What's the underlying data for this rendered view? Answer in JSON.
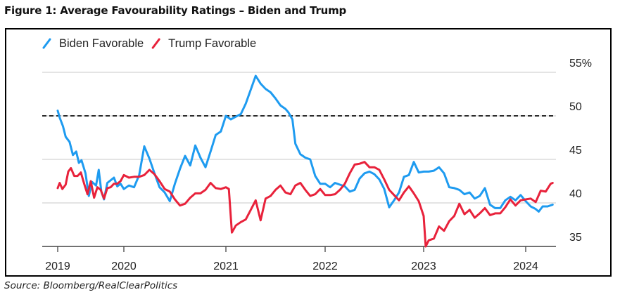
{
  "figure_title": "Figure 1: Average Favourability Ratings – Biden and Trump",
  "source": "Source: Bloomberg/RealClearPolitics",
  "chart_data": {
    "type": "line",
    "title": "Figure 1: Average Favourability Ratings – Biden and Trump",
    "xlabel": "",
    "ylabel": "",
    "x_ticks": [
      "2019",
      "2020",
      "2021",
      "2022",
      "2023",
      "2024"
    ],
    "y_ticks": [
      "35",
      "40",
      "45",
      "50",
      "55%"
    ],
    "ylim": [
      35,
      55
    ],
    "xlim": [
      2019,
      2024.3
    ],
    "grid": "horizontal",
    "legend": "top-left",
    "reference_line": {
      "value": 50,
      "style": "dashed",
      "color": "#111111"
    },
    "series": [
      {
        "name": "Biden Favorable",
        "color": "#1e9bf0",
        "points": [
          [
            2019.0,
            50.6
          ],
          [
            2019.03,
            49.8
          ],
          [
            2019.08,
            48.8
          ],
          [
            2019.12,
            47.6
          ],
          [
            2019.18,
            47.0
          ],
          [
            2019.23,
            45.5
          ],
          [
            2019.28,
            45.9
          ],
          [
            2019.32,
            44.6
          ],
          [
            2019.36,
            44.9
          ],
          [
            2019.42,
            43.4
          ],
          [
            2019.47,
            40.8
          ],
          [
            2019.52,
            42.4
          ],
          [
            2019.58,
            42.0
          ],
          [
            2019.62,
            43.8
          ],
          [
            2019.66,
            41.3
          ],
          [
            2019.7,
            40.4
          ],
          [
            2019.75,
            42.3
          ],
          [
            2019.8,
            42.6
          ],
          [
            2019.85,
            42.9
          ],
          [
            2019.9,
            41.9
          ],
          [
            2019.95,
            42.2
          ],
          [
            2020.0,
            41.6
          ],
          [
            2020.05,
            42.0
          ],
          [
            2020.1,
            41.8
          ],
          [
            2020.15,
            43.2
          ],
          [
            2020.2,
            46.5
          ],
          [
            2020.25,
            45.1
          ],
          [
            2020.3,
            43.4
          ],
          [
            2020.35,
            41.8
          ],
          [
            2020.4,
            41.2
          ],
          [
            2020.45,
            40.2
          ],
          [
            2020.5,
            42.2
          ],
          [
            2020.55,
            43.9
          ],
          [
            2020.6,
            45.4
          ],
          [
            2020.65,
            44.3
          ],
          [
            2020.7,
            46.6
          ],
          [
            2020.75,
            45.2
          ],
          [
            2020.8,
            44.1
          ],
          [
            2020.85,
            45.9
          ],
          [
            2020.9,
            47.8
          ],
          [
            2020.95,
            48.2
          ],
          [
            2021.0,
            50.0
          ],
          [
            2021.05,
            49.6
          ],
          [
            2021.1,
            49.9
          ],
          [
            2021.15,
            50.2
          ],
          [
            2021.2,
            51.4
          ],
          [
            2021.25,
            53.0
          ],
          [
            2021.3,
            54.6
          ],
          [
            2021.35,
            53.7
          ],
          [
            2021.4,
            53.1
          ],
          [
            2021.45,
            52.7
          ],
          [
            2021.5,
            52.0
          ],
          [
            2021.55,
            51.2
          ],
          [
            2021.6,
            50.8
          ],
          [
            2021.63,
            50.4
          ],
          [
            2021.67,
            49.6
          ],
          [
            2021.7,
            46.8
          ],
          [
            2021.75,
            45.6
          ],
          [
            2021.8,
            45.2
          ],
          [
            2021.85,
            45.0
          ],
          [
            2021.9,
            43.1
          ],
          [
            2021.95,
            42.2
          ],
          [
            2022.0,
            42.2
          ],
          [
            2022.05,
            41.8
          ],
          [
            2022.1,
            42.3
          ],
          [
            2022.15,
            42.1
          ],
          [
            2022.2,
            41.9
          ],
          [
            2022.25,
            41.3
          ],
          [
            2022.3,
            41.5
          ],
          [
            2022.35,
            42.8
          ],
          [
            2022.4,
            43.4
          ],
          [
            2022.45,
            43.6
          ],
          [
            2022.5,
            43.3
          ],
          [
            2022.55,
            42.7
          ],
          [
            2022.6,
            41.6
          ],
          [
            2022.65,
            39.5
          ],
          [
            2022.7,
            40.3
          ],
          [
            2022.75,
            41.2
          ],
          [
            2022.8,
            43.0
          ],
          [
            2022.85,
            43.2
          ],
          [
            2022.9,
            44.7
          ],
          [
            2022.95,
            43.5
          ],
          [
            2023.0,
            43.6
          ],
          [
            2023.05,
            43.6
          ],
          [
            2023.1,
            43.7
          ],
          [
            2023.15,
            44.1
          ],
          [
            2023.2,
            43.4
          ],
          [
            2023.25,
            41.8
          ],
          [
            2023.3,
            41.7
          ],
          [
            2023.35,
            41.5
          ],
          [
            2023.4,
            41.0
          ],
          [
            2023.45,
            41.2
          ],
          [
            2023.5,
            40.5
          ],
          [
            2023.55,
            40.8
          ],
          [
            2023.6,
            41.7
          ],
          [
            2023.65,
            39.8
          ],
          [
            2023.7,
            39.4
          ],
          [
            2023.75,
            39.4
          ],
          [
            2023.8,
            40.3
          ],
          [
            2023.85,
            40.7
          ],
          [
            2023.9,
            40.3
          ],
          [
            2023.95,
            40.9
          ],
          [
            2024.0,
            40.2
          ],
          [
            2024.05,
            39.6
          ],
          [
            2024.1,
            39.3
          ],
          [
            2024.13,
            39.0
          ],
          [
            2024.17,
            39.6
          ],
          [
            2024.22,
            39.6
          ],
          [
            2024.27,
            39.8
          ]
        ]
      },
      {
        "name": "Trump Favorable",
        "color": "#e8223b",
        "points": [
          [
            2019.0,
            41.7
          ],
          [
            2019.03,
            42.3
          ],
          [
            2019.07,
            41.6
          ],
          [
            2019.12,
            42.1
          ],
          [
            2019.16,
            43.6
          ],
          [
            2019.2,
            44.0
          ],
          [
            2019.25,
            43.1
          ],
          [
            2019.3,
            43.1
          ],
          [
            2019.35,
            43.5
          ],
          [
            2019.4,
            42.2
          ],
          [
            2019.45,
            41.0
          ],
          [
            2019.5,
            42.5
          ],
          [
            2019.55,
            40.6
          ],
          [
            2019.6,
            41.8
          ],
          [
            2019.65,
            41.5
          ],
          [
            2019.7,
            40.5
          ],
          [
            2019.75,
            41.7
          ],
          [
            2019.8,
            41.8
          ],
          [
            2019.85,
            42.2
          ],
          [
            2019.9,
            42.2
          ],
          [
            2019.95,
            42.5
          ],
          [
            2020.0,
            43.2
          ],
          [
            2020.05,
            42.9
          ],
          [
            2020.1,
            43.0
          ],
          [
            2020.15,
            43.0
          ],
          [
            2020.2,
            43.2
          ],
          [
            2020.25,
            43.8
          ],
          [
            2020.3,
            43.3
          ],
          [
            2020.35,
            42.5
          ],
          [
            2020.4,
            41.6
          ],
          [
            2020.45,
            41.3
          ],
          [
            2020.5,
            40.4
          ],
          [
            2020.55,
            39.7
          ],
          [
            2020.6,
            39.9
          ],
          [
            2020.65,
            40.6
          ],
          [
            2020.7,
            41.1
          ],
          [
            2020.75,
            41.1
          ],
          [
            2020.8,
            41.5
          ],
          [
            2020.85,
            42.3
          ],
          [
            2020.9,
            41.7
          ],
          [
            2020.95,
            41.6
          ],
          [
            2021.0,
            41.8
          ],
          [
            2021.03,
            41.6
          ],
          [
            2021.06,
            36.6
          ],
          [
            2021.1,
            37.4
          ],
          [
            2021.15,
            37.8
          ],
          [
            2021.2,
            38.1
          ],
          [
            2021.25,
            39.2
          ],
          [
            2021.3,
            40.3
          ],
          [
            2021.35,
            38.0
          ],
          [
            2021.4,
            40.5
          ],
          [
            2021.45,
            40.8
          ],
          [
            2021.5,
            41.5
          ],
          [
            2021.55,
            42.0
          ],
          [
            2021.6,
            41.2
          ],
          [
            2021.65,
            41.0
          ],
          [
            2021.7,
            42.0
          ],
          [
            2021.75,
            42.3
          ],
          [
            2021.8,
            41.5
          ],
          [
            2021.85,
            40.8
          ],
          [
            2021.9,
            41.0
          ],
          [
            2021.95,
            41.6
          ],
          [
            2022.0,
            40.9
          ],
          [
            2022.05,
            40.9
          ],
          [
            2022.1,
            41.0
          ],
          [
            2022.15,
            41.5
          ],
          [
            2022.2,
            42.2
          ],
          [
            2022.25,
            43.4
          ],
          [
            2022.3,
            44.4
          ],
          [
            2022.35,
            44.5
          ],
          [
            2022.4,
            44.7
          ],
          [
            2022.45,
            44.1
          ],
          [
            2022.5,
            44.1
          ],
          [
            2022.55,
            43.8
          ],
          [
            2022.6,
            42.7
          ],
          [
            2022.65,
            41.5
          ],
          [
            2022.7,
            40.9
          ],
          [
            2022.75,
            40.3
          ],
          [
            2022.8,
            41.2
          ],
          [
            2022.85,
            41.9
          ],
          [
            2022.9,
            41.1
          ],
          [
            2022.95,
            40.2
          ],
          [
            2023.0,
            38.5
          ],
          [
            2023.02,
            35.0
          ],
          [
            2023.05,
            35.7
          ],
          [
            2023.1,
            35.9
          ],
          [
            2023.15,
            37.3
          ],
          [
            2023.2,
            36.8
          ],
          [
            2023.25,
            37.9
          ],
          [
            2023.3,
            38.5
          ],
          [
            2023.35,
            39.9
          ],
          [
            2023.4,
            38.7
          ],
          [
            2023.45,
            39.2
          ],
          [
            2023.5,
            38.3
          ],
          [
            2023.55,
            38.8
          ],
          [
            2023.6,
            39.4
          ],
          [
            2023.65,
            38.6
          ],
          [
            2023.7,
            38.8
          ],
          [
            2023.75,
            38.8
          ],
          [
            2023.8,
            39.5
          ],
          [
            2023.85,
            40.4
          ],
          [
            2023.9,
            39.7
          ],
          [
            2023.95,
            40.3
          ],
          [
            2024.0,
            40.4
          ],
          [
            2024.05,
            40.5
          ],
          [
            2024.1,
            40.1
          ],
          [
            2024.15,
            41.4
          ],
          [
            2024.2,
            41.3
          ],
          [
            2024.25,
            42.2
          ],
          [
            2024.27,
            42.3
          ]
        ]
      }
    ]
  }
}
